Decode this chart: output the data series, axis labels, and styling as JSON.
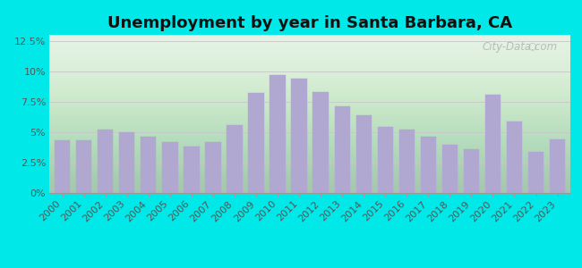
{
  "title": "Unemployment by year in Santa Barbara, CA",
  "years": [
    2000,
    2001,
    2002,
    2003,
    2004,
    2005,
    2006,
    2007,
    2008,
    2009,
    2010,
    2011,
    2012,
    2013,
    2014,
    2015,
    2016,
    2017,
    2018,
    2019,
    2020,
    2021,
    2022,
    2023
  ],
  "values": [
    4.3,
    4.3,
    5.2,
    5.0,
    4.6,
    4.2,
    3.8,
    4.2,
    5.6,
    8.2,
    9.7,
    9.4,
    8.3,
    7.1,
    6.4,
    5.4,
    5.2,
    4.6,
    4.0,
    3.6,
    8.1,
    5.9,
    3.4,
    4.4
  ],
  "bar_color": "#b0a8d0",
  "bg_outer": "#00e8e8",
  "bg_plot_top": "#dff0df",
  "bg_plot_bottom": "#f0faf0",
  "grid_color": "#c8c8c8",
  "title_color": "#111111",
  "tick_color": "#555555",
  "ylim": [
    0,
    13
  ],
  "yticks": [
    0,
    2.5,
    5.0,
    7.5,
    10.0,
    12.5
  ],
  "ytick_labels": [
    "0%",
    "2.5%",
    "5%",
    "7.5%",
    "10%",
    "12.5%"
  ],
  "watermark_text": "City-Data.com",
  "watermark_color": "#aaaaaa",
  "title_fontsize": 13,
  "tick_fontsize": 8
}
